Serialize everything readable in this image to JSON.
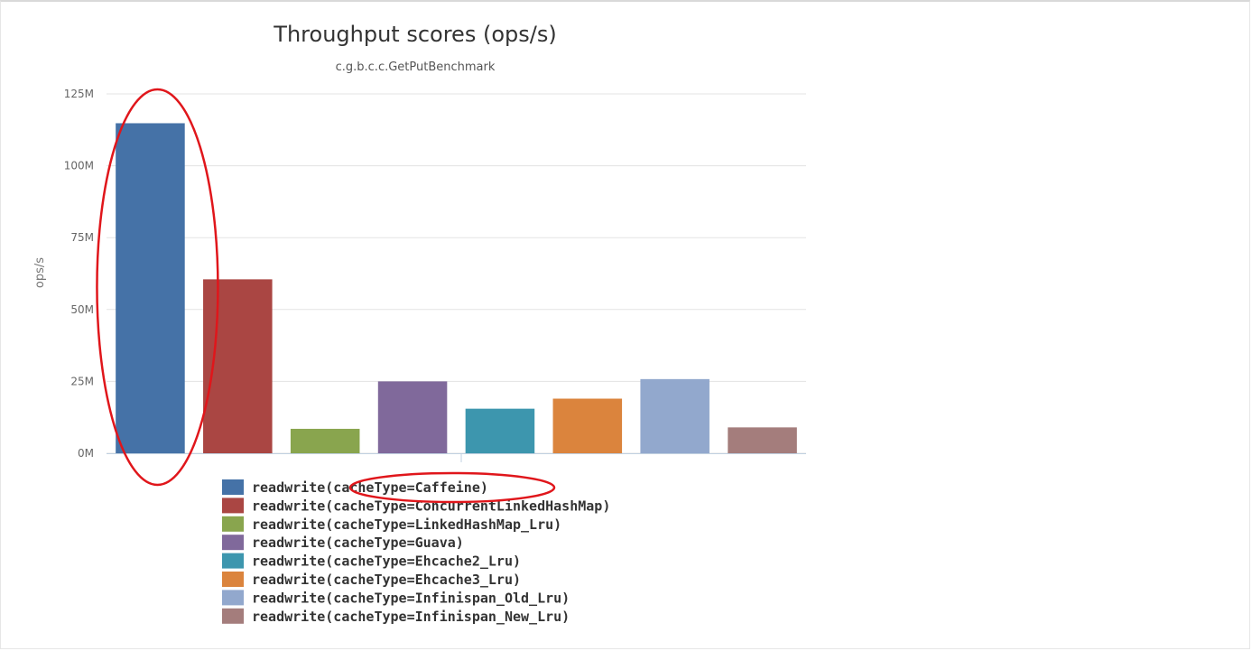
{
  "chart_data": {
    "type": "bar",
    "title": "Throughput scores (ops/s)",
    "subtitle": "c.g.b.c.c.GetPutBenchmark",
    "ylabel": "ops/s",
    "ylim": [
      0,
      125000000
    ],
    "yticks": [
      {
        "value": 0,
        "label": "0M"
      },
      {
        "value": 25000000,
        "label": "25M"
      },
      {
        "value": 50000000,
        "label": "50M"
      },
      {
        "value": 75000000,
        "label": "75M"
      },
      {
        "value": 100000000,
        "label": "100M"
      },
      {
        "value": 125000000,
        "label": "125M"
      }
    ],
    "grid": true,
    "legend_position": "bottom",
    "series": [
      {
        "name": "readwrite(cacheType=Caffeine)",
        "value": 114800000,
        "color": "#4572a7"
      },
      {
        "name": "readwrite(cacheType=ConcurrentLinkedHashMap)",
        "value": 60500000,
        "color": "#aa4643"
      },
      {
        "name": "readwrite(cacheType=LinkedHashMap_Lru)",
        "value": 8500000,
        "color": "#89a54e"
      },
      {
        "name": "readwrite(cacheType=Guava)",
        "value": 25000000,
        "color": "#80699b"
      },
      {
        "name": "readwrite(cacheType=Ehcache2_Lru)",
        "value": 15500000,
        "color": "#3d96ae"
      },
      {
        "name": "readwrite(cacheType=Ehcache3_Lru)",
        "value": 19000000,
        "color": "#db843d"
      },
      {
        "name": "readwrite(cacheType=Infinispan_Old_Lru)",
        "value": 25800000,
        "color": "#92a8cd"
      },
      {
        "name": "readwrite(cacheType=Infinispan_New_Lru)",
        "value": 9000000,
        "color": "#a47d7c"
      }
    ],
    "annotations": [
      {
        "type": "circle",
        "target": "bar",
        "series_index": 0,
        "color": "#e0161b"
      },
      {
        "type": "circle",
        "target": "legend",
        "series_index": 0,
        "color": "#e0161b"
      }
    ]
  }
}
